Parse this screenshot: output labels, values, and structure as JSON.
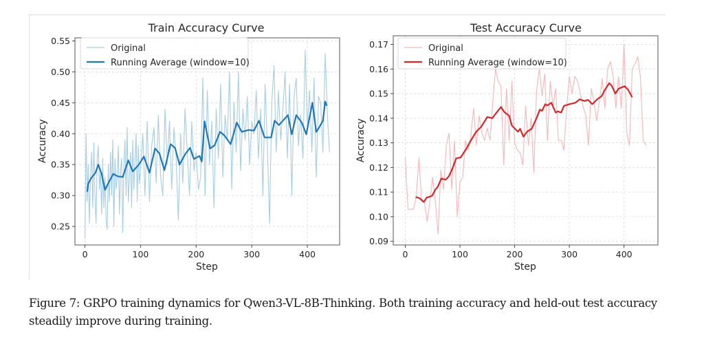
{
  "figure": {
    "caption": "Figure 7: GRPO training dynamics for Qwen3-VL-8B-Thinking. Both training accuracy and held-out test accuracy steadily improve during training."
  },
  "colors": {
    "train_original": "#a6cde3",
    "train_running": "#1f77b4",
    "test_original": "#f4b6b9",
    "test_running": "#d62728",
    "grid": "#d9d9d9",
    "spine": "#555555"
  },
  "chart_data": [
    {
      "type": "line",
      "title": "Train Accuracy Curve",
      "xlabel": "Step",
      "ylabel": "Accuracy",
      "xlim": [
        -18,
        458
      ],
      "ylim": [
        0.22,
        0.555
      ],
      "xticks": [
        0,
        100,
        200,
        300,
        400
      ],
      "yticks": [
        0.25,
        0.3,
        0.35,
        0.4,
        0.45,
        0.5,
        0.55
      ],
      "ytick_labels": [
        "0.25",
        "0.30",
        "0.35",
        "0.40",
        "0.45",
        "0.50",
        "0.55"
      ],
      "xtick_labels": [
        "0",
        "100",
        "200",
        "300",
        "400"
      ],
      "grid": true,
      "legend_position": "top-left",
      "series": [
        {
          "name": "Original",
          "x": [
            0,
            2,
            4,
            6,
            8,
            10,
            12,
            14,
            16,
            18,
            20,
            22,
            24,
            26,
            28,
            30,
            32,
            34,
            36,
            38,
            40,
            42,
            44,
            46,
            48,
            50,
            52,
            54,
            56,
            58,
            60,
            62,
            64,
            66,
            68,
            70,
            72,
            74,
            76,
            78,
            80,
            82,
            84,
            86,
            88,
            90,
            92,
            94,
            96,
            98,
            100,
            104,
            108,
            112,
            116,
            120,
            124,
            128,
            132,
            136,
            140,
            144,
            148,
            152,
            156,
            160,
            164,
            168,
            172,
            176,
            180,
            184,
            188,
            192,
            196,
            200,
            204,
            208,
            212,
            216,
            220,
            224,
            228,
            232,
            236,
            240,
            244,
            248,
            252,
            256,
            260,
            264,
            268,
            272,
            276,
            280,
            284,
            288,
            292,
            296,
            300,
            304,
            308,
            312,
            316,
            320,
            324,
            328,
            332,
            336,
            340,
            344,
            348,
            352,
            356,
            360,
            364,
            368,
            372,
            376,
            380,
            384,
            388,
            392,
            396,
            400,
            404,
            408,
            412,
            416,
            420,
            424,
            428,
            432,
            436,
            440
          ],
          "values": [
            0.23,
            0.4,
            0.29,
            0.35,
            0.255,
            0.33,
            0.37,
            0.28,
            0.385,
            0.3,
            0.255,
            0.36,
            0.38,
            0.31,
            0.34,
            0.27,
            0.36,
            0.28,
            0.33,
            0.26,
            0.245,
            0.35,
            0.29,
            0.37,
            0.3,
            0.39,
            0.25,
            0.36,
            0.31,
            0.33,
            0.38,
            0.27,
            0.34,
            0.36,
            0.24,
            0.35,
            0.39,
            0.3,
            0.41,
            0.29,
            0.33,
            0.37,
            0.28,
            0.39,
            0.31,
            0.36,
            0.4,
            0.29,
            0.38,
            0.32,
            0.34,
            0.4,
            0.3,
            0.42,
            0.29,
            0.38,
            0.41,
            0.32,
            0.43,
            0.33,
            0.3,
            0.44,
            0.35,
            0.42,
            0.31,
            0.41,
            0.36,
            0.26,
            0.4,
            0.32,
            0.44,
            0.37,
            0.3,
            0.42,
            0.34,
            0.37,
            0.31,
            0.33,
            0.49,
            0.3,
            0.47,
            0.35,
            0.42,
            0.28,
            0.44,
            0.36,
            0.48,
            0.33,
            0.43,
            0.39,
            0.5,
            0.31,
            0.45,
            0.37,
            0.5,
            0.34,
            0.44,
            0.39,
            0.46,
            0.35,
            0.42,
            0.4,
            0.47,
            0.36,
            0.44,
            0.3,
            0.48,
            0.38,
            0.255,
            0.45,
            0.51,
            0.37,
            0.47,
            0.39,
            0.44,
            0.5,
            0.36,
            0.48,
            0.3,
            0.46,
            0.49,
            0.38,
            0.43,
            0.36,
            0.535,
            0.41,
            0.47,
            0.37,
            0.49,
            0.33,
            0.46,
            0.45,
            0.37,
            0.53,
            0.43,
            0.37
          ]
        },
        {
          "name": "Running Average (window=10)",
          "x": [
            4,
            6,
            11,
            19,
            24,
            30,
            36,
            42,
            51,
            59,
            68,
            78,
            86,
            97,
            106,
            116,
            126,
            134,
            143,
            154,
            162,
            170,
            181,
            189,
            196,
            206,
            210,
            215,
            225,
            233,
            243,
            251,
            262,
            273,
            282,
            294,
            304,
            313,
            323,
            335,
            341,
            349,
            365,
            372,
            380,
            390,
            398,
            409,
            416,
            421,
            428,
            432,
            435
          ],
          "values": [
            0.306,
            0.319,
            0.328,
            0.337,
            0.35,
            0.335,
            0.309,
            0.32,
            0.335,
            0.331,
            0.33,
            0.357,
            0.339,
            0.35,
            0.363,
            0.337,
            0.376,
            0.368,
            0.341,
            0.383,
            0.377,
            0.35,
            0.368,
            0.377,
            0.359,
            0.364,
            0.355,
            0.42,
            0.376,
            0.381,
            0.403,
            0.397,
            0.383,
            0.418,
            0.403,
            0.406,
            0.405,
            0.421,
            0.394,
            0.394,
            0.421,
            0.414,
            0.43,
            0.399,
            0.43,
            0.418,
            0.399,
            0.45,
            0.403,
            0.41,
            0.421,
            0.452,
            0.445
          ]
        }
      ]
    },
    {
      "type": "line",
      "title": "Test Accuracy Curve",
      "xlabel": "Step",
      "ylabel": "Accuracy",
      "xlim": [
        -22,
        462
      ],
      "ylim": [
        0.0885,
        0.1735
      ],
      "xticks": [
        0,
        100,
        200,
        300,
        400
      ],
      "yticks": [
        0.09,
        0.1,
        0.11,
        0.12,
        0.13,
        0.14,
        0.15,
        0.16,
        0.17
      ],
      "ytick_labels": [
        "0.09",
        "0.10",
        "0.11",
        "0.12",
        "0.13",
        "0.14",
        "0.15",
        "0.16",
        "0.17"
      ],
      "xtick_labels": [
        "0",
        "100",
        "200",
        "300",
        "400"
      ],
      "grid": true,
      "legend_position": "top-left",
      "series": [
        {
          "name": "Original",
          "x": [
            0,
            5,
            10,
            15,
            20,
            25,
            30,
            35,
            40,
            45,
            50,
            55,
            60,
            65,
            70,
            75,
            80,
            85,
            90,
            95,
            100,
            105,
            110,
            115,
            120,
            125,
            130,
            135,
            140,
            145,
            150,
            155,
            160,
            165,
            170,
            175,
            180,
            185,
            190,
            195,
            200,
            205,
            210,
            215,
            220,
            225,
            230,
            235,
            240,
            245,
            250,
            255,
            260,
            265,
            270,
            275,
            280,
            285,
            290,
            295,
            300,
            305,
            310,
            315,
            320,
            325,
            330,
            335,
            340,
            345,
            350,
            355,
            360,
            365,
            370,
            375,
            380,
            385,
            390,
            395,
            400,
            405,
            410,
            415,
            420,
            425,
            430,
            435,
            440
          ],
          "values": [
            0.124,
            0.103,
            0.103,
            0.103,
            0.108,
            0.124,
            0.106,
            0.106,
            0.098,
            0.106,
            0.116,
            0.106,
            0.093,
            0.119,
            0.111,
            0.129,
            0.134,
            0.111,
            0.131,
            0.1,
            0.114,
            0.116,
            0.131,
            0.127,
            0.133,
            0.144,
            0.129,
            0.141,
            0.134,
            0.131,
            0.136,
            0.131,
            0.147,
            0.16,
            0.155,
            0.153,
            0.121,
            0.152,
            0.131,
            0.155,
            0.13,
            0.127,
            0.126,
            0.121,
            0.145,
            0.129,
            0.14,
            0.118,
            0.151,
            0.16,
            0.149,
            0.158,
            0.131,
            0.155,
            0.145,
            0.152,
            0.131,
            0.131,
            0.127,
            0.144,
            0.157,
            0.15,
            0.157,
            0.155,
            0.15,
            0.145,
            0.141,
            0.129,
            0.152,
            0.147,
            0.139,
            0.147,
            0.156,
            0.144,
            0.16,
            0.163,
            0.157,
            0.144,
            0.157,
            0.144,
            0.17,
            0.134,
            0.129,
            0.16,
            0.162,
            0.165,
            0.157,
            0.131,
            0.129
          ]
        },
        {
          "name": "Running Average (window=10)",
          "x": [
            19,
            26,
            34,
            39,
            49,
            55,
            59,
            66,
            74,
            80,
            87,
            93,
            101,
            110,
            120,
            130,
            139,
            150,
            159,
            164,
            175,
            181,
            190,
            195,
            206,
            210,
            216,
            223,
            231,
            240,
            246,
            250,
            256,
            260,
            267,
            275,
            279,
            285,
            290,
            300,
            311,
            319,
            328,
            334,
            342,
            351,
            359,
            365,
            373,
            378,
            384,
            390,
            401,
            407,
            415
          ],
          "values": [
            0.108,
            0.1075,
            0.106,
            0.1077,
            0.1085,
            0.111,
            0.112,
            0.1155,
            0.115,
            0.1165,
            0.12,
            0.1237,
            0.124,
            0.127,
            0.131,
            0.1346,
            0.1366,
            0.1405,
            0.14,
            0.1415,
            0.1446,
            0.1425,
            0.141,
            0.137,
            0.1345,
            0.1357,
            0.1325,
            0.1346,
            0.1357,
            0.14,
            0.1435,
            0.143,
            0.1457,
            0.1452,
            0.1463,
            0.1423,
            0.1428,
            0.1423,
            0.145,
            0.1457,
            0.1463,
            0.1477,
            0.147,
            0.1475,
            0.1457,
            0.1477,
            0.149,
            0.1515,
            0.1543,
            0.153,
            0.15,
            0.152,
            0.153,
            0.1517,
            0.1485
          ]
        }
      ]
    }
  ]
}
